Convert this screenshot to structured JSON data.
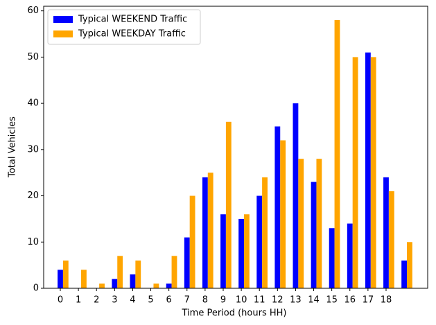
{
  "chart_data": {
    "type": "bar",
    "xlabel": "Time Period (hours HH)",
    "ylabel": "Total Vehicles",
    "categories": [
      "0",
      "1",
      "2",
      "3",
      "4",
      "5",
      "6",
      "7",
      "8",
      "9",
      "10",
      "11",
      "12",
      "13",
      "14",
      "15",
      "16",
      "17",
      "18",
      null
    ],
    "series": [
      {
        "name": "Typical WEEKEND Traffic",
        "color": "#0000ff",
        "values": [
          4,
          0,
          0,
          2,
          3,
          0,
          1,
          11,
          24,
          16,
          15,
          20,
          35,
          40,
          23,
          13,
          14,
          51,
          24,
          6
        ]
      },
      {
        "name": "Typical WEEKDAY Traffic",
        "color": "#ffa500",
        "values": [
          6,
          4,
          1,
          7,
          6,
          1,
          7,
          20,
          25,
          36,
          16,
          24,
          32,
          28,
          28,
          58,
          50,
          50,
          21,
          10
        ]
      }
    ],
    "ylim": [
      0,
      61
    ],
    "yticks": [
      0,
      10,
      20,
      30,
      40,
      50,
      60
    ],
    "legend": "upper left"
  }
}
